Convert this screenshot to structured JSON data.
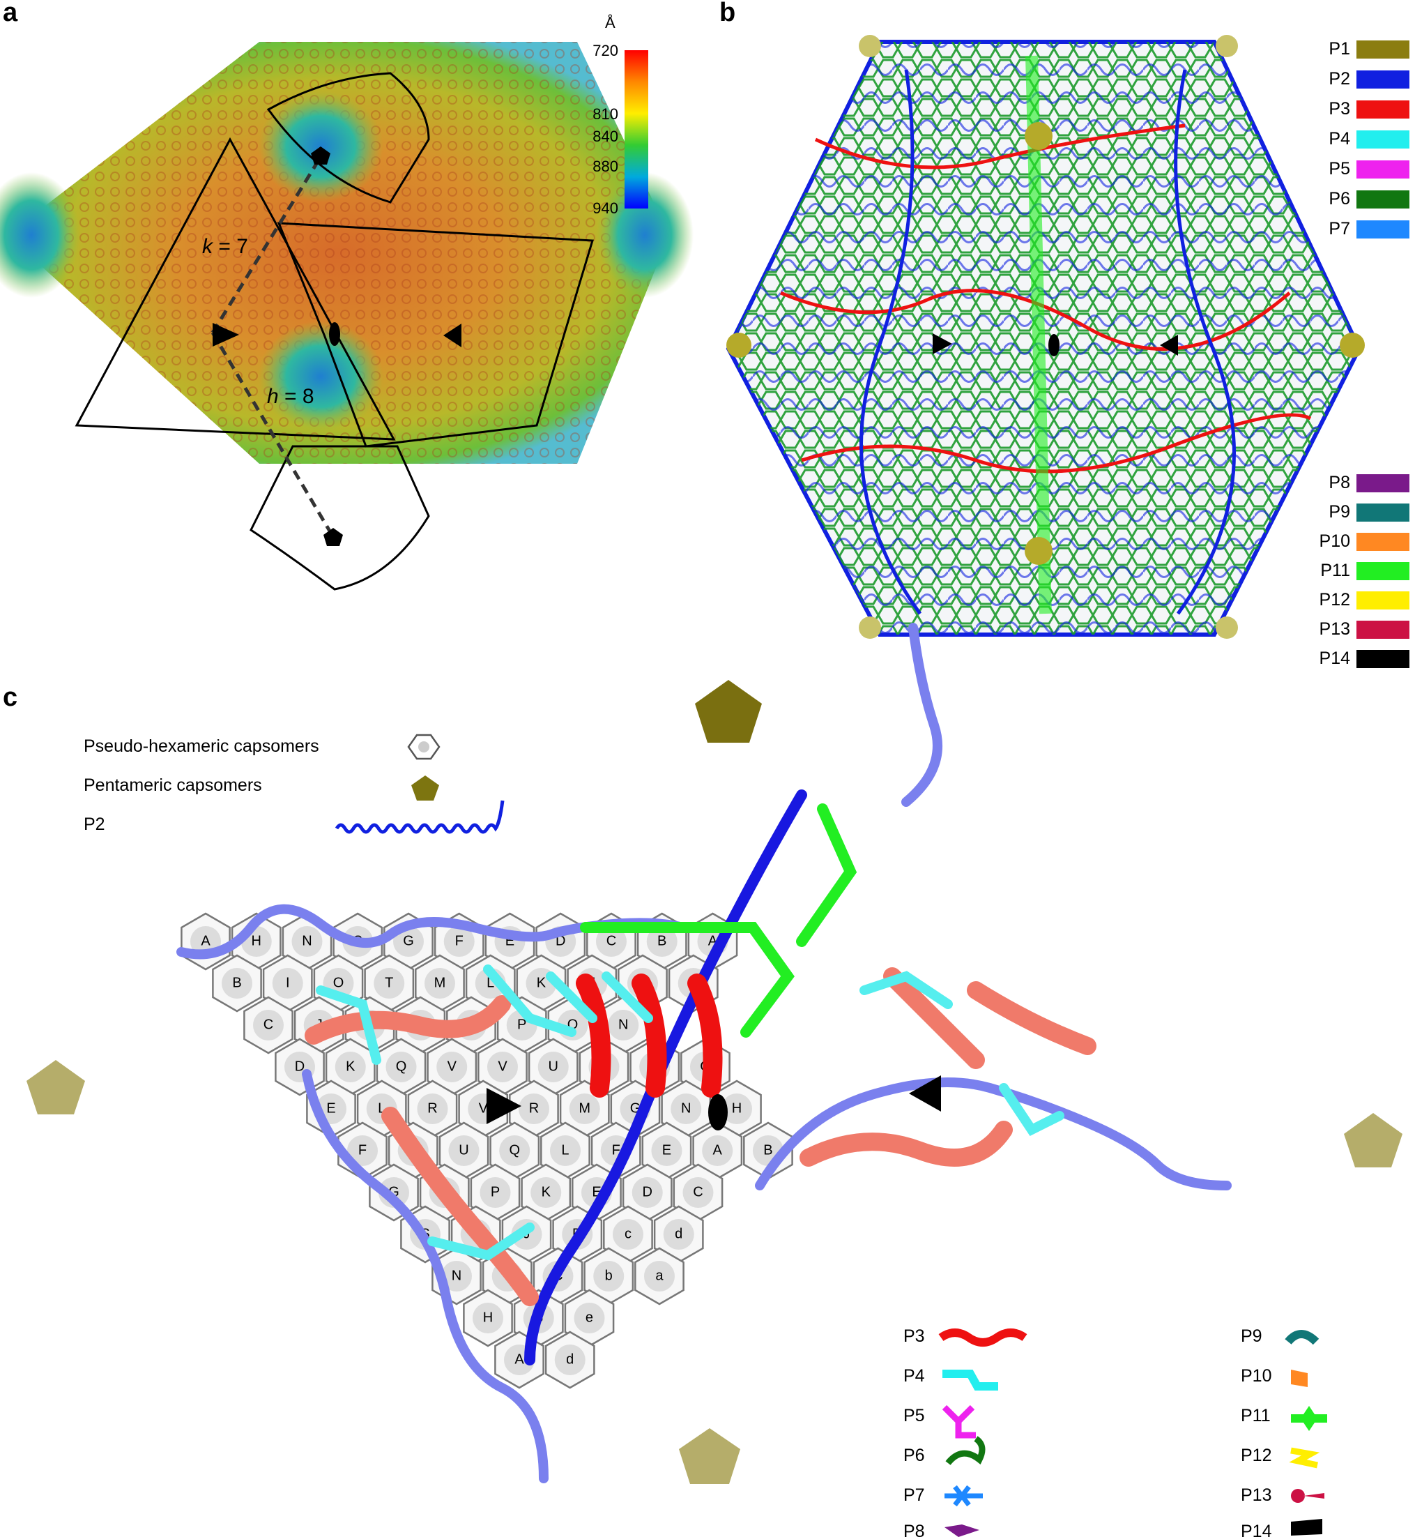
{
  "panels": {
    "a": {
      "label": "a",
      "colorbar": {
        "unit": "Å",
        "ticks": [
          {
            "value": "720"
          },
          {
            "value": "810"
          },
          {
            "value": "840"
          },
          {
            "value": "880"
          },
          {
            "value": "940"
          }
        ],
        "gradient": [
          "#ff0000",
          "#ff8800",
          "#ffee00",
          "#33cc33",
          "#00aadd",
          "#0000ff"
        ]
      },
      "annotations": {
        "k": {
          "symbol": "k",
          "value": " = 7"
        },
        "h": {
          "symbol": "h",
          "value": " = 8"
        }
      }
    },
    "b": {
      "label": "b",
      "legend_top": [
        {
          "name": "P1",
          "color": "#8b7d10"
        },
        {
          "name": "P2",
          "color": "#1020e0"
        },
        {
          "name": "P3",
          "color": "#ee1111"
        },
        {
          "name": "P4",
          "color": "#22eeee"
        },
        {
          "name": "P5",
          "color": "#ee22ee"
        },
        {
          "name": "P6",
          "color": "#117711"
        },
        {
          "name": "P7",
          "color": "#1e88ff"
        }
      ],
      "legend_bottom": [
        {
          "name": "P8",
          "color": "#7a1a8a"
        },
        {
          "name": "P9",
          "color": "#117777"
        },
        {
          "name": "P10",
          "color": "#ff8822"
        },
        {
          "name": "P11",
          "color": "#22ee22"
        },
        {
          "name": "P12",
          "color": "#ffee00"
        },
        {
          "name": "P13",
          "color": "#cc1144"
        },
        {
          "name": "P14",
          "color": "#000000"
        }
      ]
    },
    "c": {
      "label": "c",
      "key": [
        {
          "label": "Pseudo-hexameric capsomers",
          "icon": "hexagon-icon"
        },
        {
          "label": "Pentameric capsomers",
          "icon": "pentagon-icon"
        },
        {
          "label": "P2",
          "icon": "helix-icon"
        }
      ],
      "legend_left": [
        {
          "name": "P3",
          "color": "#ee1111"
        },
        {
          "name": "P4",
          "color": "#22eeee"
        },
        {
          "name": "P5",
          "color": "#ee22ee"
        },
        {
          "name": "P6",
          "color": "#117711"
        },
        {
          "name": "P7",
          "color": "#1e88ff"
        },
        {
          "name": "P8",
          "color": "#7a1a8a"
        }
      ],
      "legend_right": [
        {
          "name": "P9",
          "color": "#117777"
        },
        {
          "name": "P10",
          "color": "#ff8822"
        },
        {
          "name": "P11",
          "color": "#22ee22"
        },
        {
          "name": "P12",
          "color": "#ffee00"
        },
        {
          "name": "P13",
          "color": "#cc1144"
        },
        {
          "name": "P14",
          "color": "#000000"
        }
      ],
      "hex_rows": [
        [
          "A",
          "H",
          "N",
          "S",
          "G",
          "F",
          "E",
          "D",
          "C",
          "B",
          "A"
        ],
        [
          "B",
          "I",
          "O",
          "T",
          "M",
          "L",
          "K",
          "J",
          "I",
          "H"
        ],
        [
          "C",
          "J",
          "U",
          "R",
          "Q",
          "P",
          "O",
          "N"
        ],
        [
          "D",
          "K",
          "Q",
          "V",
          "V",
          "U",
          "T",
          "S",
          "G"
        ],
        [
          "E",
          "L",
          "R",
          "V",
          "R",
          "M",
          "G",
          "N",
          "H"
        ],
        [
          "F",
          "M",
          "U",
          "Q",
          "L",
          "F",
          "E",
          "A",
          "B"
        ],
        [
          "G",
          "T",
          "P",
          "K",
          "E",
          "D",
          "C"
        ],
        [
          "S",
          "O",
          "J",
          "D",
          "c",
          "d"
        ],
        [
          "N",
          "I",
          "C",
          "b",
          "a"
        ],
        [
          "H",
          "B",
          "e"
        ],
        [
          "A",
          "d"
        ]
      ]
    }
  }
}
